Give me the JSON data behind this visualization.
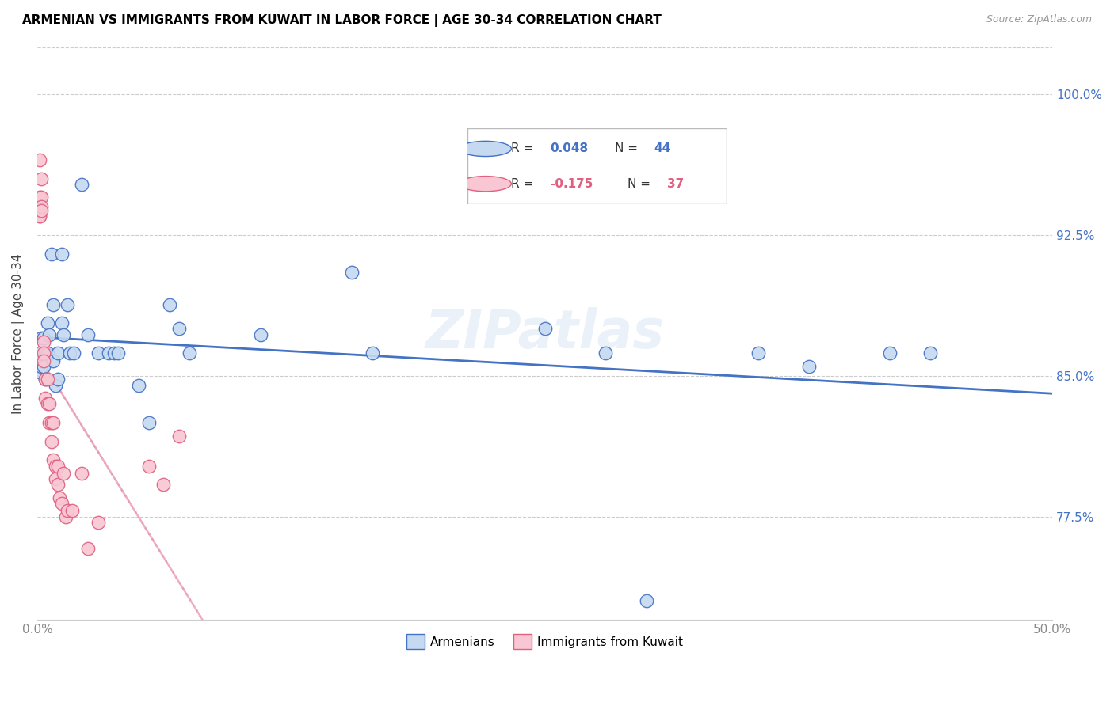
{
  "title": "ARMENIAN VS IMMIGRANTS FROM KUWAIT IN LABOR FORCE | AGE 30-34 CORRELATION CHART",
  "source": "Source: ZipAtlas.com",
  "ylabel": "In Labor Force | Age 30-34",
  "xlim": [
    0.0,
    0.5
  ],
  "ylim": [
    0.72,
    1.025
  ],
  "yticks": [
    0.775,
    0.85,
    0.925,
    1.0
  ],
  "ytick_labels": [
    "77.5%",
    "85.0%",
    "92.5%",
    "100.0%"
  ],
  "xticks": [
    0.0,
    0.1,
    0.2,
    0.3,
    0.4,
    0.5
  ],
  "xtick_labels": [
    "0.0%",
    "",
    "",
    "",
    "",
    "50.0%"
  ],
  "armenian_face_color": "#c5d9f0",
  "armenian_edge_color": "#4472c4",
  "kuwait_face_color": "#f9c6d3",
  "kuwait_edge_color": "#e06080",
  "armenian_line_color": "#4472c4",
  "kuwait_line_color": "#e896b4",
  "watermark": "ZIPatlas",
  "armenians_x": [
    0.001,
    0.001,
    0.002,
    0.002,
    0.003,
    0.003,
    0.004,
    0.004,
    0.005,
    0.005,
    0.006,
    0.007,
    0.008,
    0.008,
    0.009,
    0.01,
    0.01,
    0.012,
    0.012,
    0.013,
    0.015,
    0.016,
    0.018,
    0.022,
    0.025,
    0.03,
    0.035,
    0.038,
    0.04,
    0.05,
    0.055,
    0.065,
    0.07,
    0.075,
    0.11,
    0.155,
    0.165,
    0.25,
    0.28,
    0.3,
    0.355,
    0.38,
    0.42,
    0.44
  ],
  "armenians_y": [
    0.862,
    0.852,
    0.87,
    0.855,
    0.87,
    0.855,
    0.862,
    0.848,
    0.878,
    0.862,
    0.872,
    0.915,
    0.888,
    0.858,
    0.845,
    0.862,
    0.848,
    0.915,
    0.878,
    0.872,
    0.888,
    0.862,
    0.862,
    0.952,
    0.872,
    0.862,
    0.862,
    0.862,
    0.862,
    0.845,
    0.825,
    0.888,
    0.875,
    0.862,
    0.872,
    0.905,
    0.862,
    0.875,
    0.862,
    0.73,
    0.862,
    0.855,
    0.862,
    0.862
  ],
  "kuwait_x": [
    0.001,
    0.001,
    0.001,
    0.001,
    0.002,
    0.002,
    0.002,
    0.002,
    0.003,
    0.003,
    0.003,
    0.004,
    0.004,
    0.005,
    0.005,
    0.006,
    0.006,
    0.007,
    0.007,
    0.008,
    0.008,
    0.009,
    0.009,
    0.01,
    0.01,
    0.011,
    0.012,
    0.013,
    0.014,
    0.015,
    0.017,
    0.022,
    0.025,
    0.03,
    0.055,
    0.062,
    0.07
  ],
  "kuwait_y": [
    0.965,
    0.945,
    0.935,
    0.935,
    0.955,
    0.945,
    0.94,
    0.938,
    0.868,
    0.862,
    0.858,
    0.848,
    0.838,
    0.848,
    0.835,
    0.835,
    0.825,
    0.825,
    0.815,
    0.825,
    0.805,
    0.802,
    0.795,
    0.802,
    0.792,
    0.785,
    0.782,
    0.798,
    0.775,
    0.778,
    0.778,
    0.798,
    0.758,
    0.772,
    0.802,
    0.792,
    0.818
  ]
}
